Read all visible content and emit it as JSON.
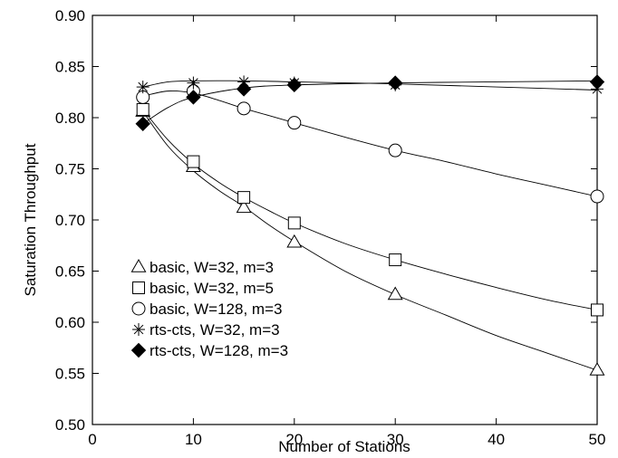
{
  "chart_data": {
    "type": "scatter",
    "title": "",
    "xlabel": "Number of Stations",
    "ylabel": "Saturation Throughput",
    "xlim": [
      0,
      50
    ],
    "ylim": [
      0.5,
      0.9
    ],
    "xticks": [
      0,
      10,
      20,
      30,
      40,
      50
    ],
    "xtick_labels": [
      "0",
      "10",
      "20",
      "30",
      "40",
      "50"
    ],
    "yticks": [
      0.5,
      0.55,
      0.6,
      0.65,
      0.7,
      0.75,
      0.8,
      0.85,
      0.9
    ],
    "ytick_labels": [
      "0.50",
      "0.55",
      "0.60",
      "0.65",
      "0.70",
      "0.75",
      "0.80",
      "0.85",
      "0.90"
    ],
    "grid": false,
    "legend_position": "bottom-left",
    "x": [
      5,
      10,
      15,
      20,
      30,
      50
    ],
    "series": [
      {
        "name": "basic, W=32, m=3",
        "marker": "triangle",
        "values": [
          0.806,
          0.752,
          0.712,
          0.678,
          0.627,
          0.553
        ],
        "curve": [
          [
            5,
            0.806
          ],
          [
            7.5,
            0.772
          ],
          [
            10,
            0.748
          ],
          [
            12.5,
            0.729
          ],
          [
            15,
            0.713
          ],
          [
            17.5,
            0.695
          ],
          [
            20,
            0.679
          ],
          [
            25,
            0.65
          ],
          [
            30,
            0.627
          ],
          [
            35,
            0.607
          ],
          [
            40,
            0.587
          ],
          [
            45,
            0.57
          ],
          [
            50,
            0.553
          ]
        ]
      },
      {
        "name": "basic, W=32, m=5",
        "marker": "square",
        "values": [
          0.808,
          0.757,
          0.722,
          0.697,
          0.661,
          0.612
        ],
        "curve": [
          [
            5,
            0.808
          ],
          [
            7.5,
            0.778
          ],
          [
            10,
            0.755
          ],
          [
            12.5,
            0.737
          ],
          [
            15,
            0.722
          ],
          [
            17.5,
            0.709
          ],
          [
            20,
            0.697
          ],
          [
            25,
            0.677
          ],
          [
            30,
            0.661
          ],
          [
            35,
            0.647
          ],
          [
            40,
            0.634
          ],
          [
            45,
            0.622
          ],
          [
            50,
            0.612
          ]
        ]
      },
      {
        "name": "basic, W=128, m=3",
        "marker": "circle",
        "values": [
          0.82,
          0.826,
          0.809,
          0.795,
          0.768,
          0.723
        ],
        "curve": [
          [
            5,
            0.821
          ],
          [
            7.5,
            0.826
          ],
          [
            10,
            0.824
          ],
          [
            12.5,
            0.817
          ],
          [
            15,
            0.809
          ],
          [
            17.5,
            0.802
          ],
          [
            20,
            0.795
          ],
          [
            25,
            0.781
          ],
          [
            30,
            0.768
          ],
          [
            35,
            0.757
          ],
          [
            40,
            0.745
          ],
          [
            45,
            0.734
          ],
          [
            50,
            0.723
          ]
        ]
      },
      {
        "name": "rts-cts, W=32, m=3",
        "marker": "star",
        "values": [
          0.83,
          0.834,
          0.835,
          0.834,
          0.832,
          0.828
        ],
        "curve": [
          [
            5,
            0.83
          ],
          [
            7.5,
            0.835
          ],
          [
            10,
            0.836
          ],
          [
            15,
            0.836
          ],
          [
            20,
            0.835
          ],
          [
            30,
            0.833
          ],
          [
            40,
            0.83
          ],
          [
            50,
            0.827
          ]
        ]
      },
      {
        "name": "rts-cts, W=128, m=3",
        "marker": "diamond",
        "values": [
          0.794,
          0.82,
          0.828,
          0.832,
          0.834,
          0.835
        ],
        "curve": [
          [
            5,
            0.794
          ],
          [
            7.5,
            0.81
          ],
          [
            10,
            0.82
          ],
          [
            15,
            0.829
          ],
          [
            20,
            0.832
          ],
          [
            30,
            0.834
          ],
          [
            40,
            0.835
          ],
          [
            50,
            0.836
          ]
        ]
      }
    ]
  }
}
